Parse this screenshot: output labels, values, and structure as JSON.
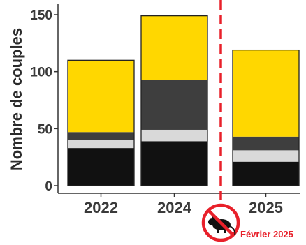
{
  "chart_data": {
    "type": "bar",
    "stacked": true,
    "ylabel": "Nombre de couples",
    "xlabel": "",
    "ylim": [
      0,
      155
    ],
    "yticks": [
      0,
      50,
      100,
      150
    ],
    "categories": [
      "2022",
      "2024",
      "2025"
    ],
    "series": [
      {
        "color": "#111111",
        "values": [
          33,
          39,
          21
        ]
      },
      {
        "color": "#d9d9d9",
        "values": [
          7,
          10,
          10
        ]
      },
      {
        "color": "#3e3e3e",
        "values": [
          7,
          44,
          12
        ]
      },
      {
        "color": "#ffd700",
        "values": [
          63,
          56,
          76
        ]
      }
    ],
    "totals": [
      110,
      149,
      119
    ],
    "grid": false,
    "annotation": {
      "label": "Février 2025",
      "position": "between-2024-and-2025",
      "line_color": "#e8202a",
      "icon": "no-rat-icon"
    }
  }
}
